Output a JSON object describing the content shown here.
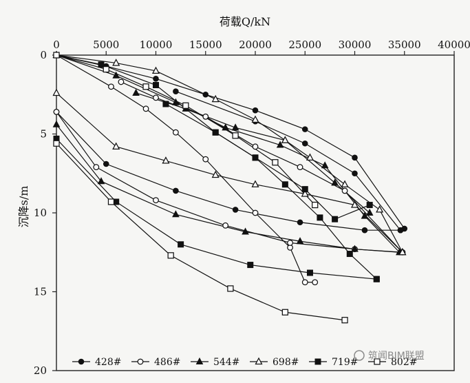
{
  "chart_data": {
    "type": "line",
    "x_axis": {
      "title": "荷载Q/kN",
      "position": "top",
      "range": [
        0,
        40000
      ],
      "ticks": [
        0,
        5000,
        10000,
        15000,
        20000,
        25000,
        30000,
        35000,
        40000
      ],
      "tick_labels": [
        "0",
        "5000",
        "10000",
        "15000",
        "20000",
        "25000",
        "30000",
        "35000",
        "40000"
      ]
    },
    "y_axis": {
      "title": "沉降s/m",
      "range": [
        0,
        20
      ],
      "reversed": true,
      "ticks": [
        0,
        5,
        10,
        15,
        20
      ],
      "tick_labels": [
        "0",
        "5",
        "10",
        "15",
        "20"
      ]
    },
    "grid": false,
    "legend_position": "bottom",
    "series": [
      {
        "name": "428#",
        "marker": "filled-circle",
        "curves": [
          [
            [
              0,
              0
            ],
            [
              5000,
              0.7
            ],
            [
              10000,
              1.5
            ],
            [
              15000,
              2.5
            ],
            [
              20000,
              3.5
            ],
            [
              25000,
              4.7
            ],
            [
              30000,
              6.5
            ],
            [
              35000,
              11.0
            ]
          ],
          [
            [
              0,
              3.6
            ],
            [
              5000,
              6.9
            ],
            [
              12000,
              8.6
            ],
            [
              18000,
              9.8
            ],
            [
              24500,
              10.6
            ],
            [
              31000,
              11.1
            ],
            [
              34600,
              11.1
            ]
          ],
          [
            [
              12000,
              2.3
            ],
            [
              20000,
              4.2
            ],
            [
              25000,
              5.6
            ],
            [
              30000,
              7.5
            ],
            [
              34600,
              11.1
            ]
          ]
        ]
      },
      {
        "name": "486#",
        "marker": "open-circle",
        "curves": [
          [
            [
              0,
              0
            ],
            [
              5500,
              2.0
            ],
            [
              9000,
              3.4
            ],
            [
              12000,
              4.9
            ],
            [
              15000,
              6.6
            ],
            [
              20000,
              10.0
            ],
            [
              23500,
              12.2
            ],
            [
              25000,
              14.4
            ],
            [
              26000,
              14.4
            ]
          ],
          [
            [
              0,
              3.6
            ],
            [
              4000,
              7.1
            ],
            [
              10000,
              9.2
            ],
            [
              17000,
              10.8
            ],
            [
              23500,
              11.9
            ],
            [
              30000,
              12.3
            ],
            [
              34800,
              12.5
            ]
          ],
          [
            [
              6500,
              1.7
            ],
            [
              10000,
              2.7
            ],
            [
              15000,
              3.9
            ],
            [
              20000,
              5.8
            ],
            [
              24500,
              7.1
            ],
            [
              29000,
              8.6
            ],
            [
              34800,
              12.5
            ]
          ]
        ]
      },
      {
        "name": "544#",
        "marker": "filled-triangle",
        "curves": [
          [
            [
              0,
              0
            ],
            [
              6000,
              1.3
            ],
            [
              12000,
              3.0
            ],
            [
              17000,
              4.6
            ],
            [
              22500,
              5.7
            ],
            [
              27000,
              7.0
            ],
            [
              31000,
              10.2
            ],
            [
              34500,
              12.5
            ]
          ],
          [
            [
              0,
              4.4
            ],
            [
              4500,
              8.0
            ],
            [
              12000,
              10.1
            ],
            [
              19000,
              11.2
            ],
            [
              24500,
              11.8
            ],
            [
              30000,
              12.3
            ],
            [
              34500,
              12.5
            ]
          ],
          [
            [
              8000,
              2.4
            ],
            [
              13000,
              3.4
            ],
            [
              18000,
              4.6
            ],
            [
              23000,
              5.4
            ],
            [
              28000,
              8.1
            ],
            [
              31500,
              10.0
            ]
          ]
        ]
      },
      {
        "name": "698#",
        "marker": "open-triangle",
        "curves": [
          [
            [
              0,
              0
            ],
            [
              6000,
              0.5
            ],
            [
              10000,
              1.0
            ],
            [
              16000,
              2.8
            ],
            [
              20000,
              4.1
            ],
            [
              23000,
              5.4
            ],
            [
              25500,
              6.5
            ],
            [
              29000,
              8.2
            ],
            [
              32500,
              9.8
            ],
            [
              34800,
              12.5
            ]
          ],
          [
            [
              0,
              2.4
            ],
            [
              6000,
              5.8
            ],
            [
              11000,
              6.7
            ],
            [
              16000,
              7.6
            ],
            [
              20000,
              8.2
            ],
            [
              25000,
              8.8
            ],
            [
              30000,
              9.5
            ],
            [
              34800,
              12.5
            ]
          ]
        ]
      },
      {
        "name": "719#",
        "marker": "filled-square",
        "curves": [
          [
            [
              0,
              0
            ],
            [
              4500,
              0.6
            ],
            [
              10000,
              1.9
            ],
            [
              16000,
              4.9
            ],
            [
              20000,
              6.5
            ],
            [
              23000,
              8.2
            ],
            [
              26500,
              10.3
            ],
            [
              29500,
              12.6
            ],
            [
              32200,
              14.2
            ]
          ],
          [
            [
              0,
              5.3
            ],
            [
              6000,
              9.3
            ],
            [
              12500,
              12.0
            ],
            [
              19500,
              13.3
            ],
            [
              25500,
              13.8
            ],
            [
              32200,
              14.2
            ]
          ],
          [
            [
              11000,
              3.1
            ],
            [
              16000,
              4.9
            ],
            [
              20000,
              6.5
            ],
            [
              25000,
              8.5
            ],
            [
              28000,
              10.4
            ],
            [
              31500,
              9.5
            ]
          ]
        ]
      },
      {
        "name": "802#",
        "marker": "open-square",
        "curves": [
          [
            [
              0,
              0
            ],
            [
              5000,
              0.9
            ],
            [
              9000,
              2.0
            ],
            [
              13000,
              3.2
            ],
            [
              18000,
              5.1
            ],
            [
              22000,
              6.8
            ],
            [
              26000,
              9.5
            ]
          ],
          [
            [
              0,
              5.6
            ],
            [
              5500,
              9.3
            ],
            [
              11500,
              12.7
            ],
            [
              17500,
              14.8
            ],
            [
              23000,
              16.3
            ],
            [
              29000,
              16.8
            ]
          ]
        ]
      }
    ]
  },
  "legend": {
    "items": [
      {
        "label": "428#",
        "marker": "filled-circle"
      },
      {
        "label": "486#",
        "marker": "open-circle"
      },
      {
        "label": "544#",
        "marker": "filled-triangle"
      },
      {
        "label": "698#",
        "marker": "open-triangle"
      },
      {
        "label": "719#",
        "marker": "filled-square"
      },
      {
        "label": "802#",
        "marker": "open-square"
      }
    ]
  },
  "watermark": {
    "text": "筑闻BIM联盟"
  }
}
